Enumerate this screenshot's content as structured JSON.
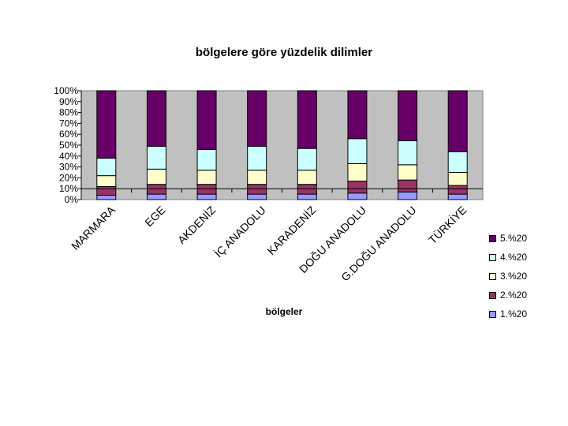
{
  "chart_data": {
    "type": "bar",
    "stacked": true,
    "normalized": true,
    "title": "bölgelere göre yüzdelik dilimler",
    "xlabel": "bölgeler",
    "ylabel": "",
    "ylim": [
      0,
      100
    ],
    "y_ticks": [
      "0%",
      "10%",
      "20%",
      "30%",
      "40%",
      "50%",
      "60%",
      "70%",
      "80%",
      "90%",
      "100%"
    ],
    "categories": [
      "MARMARA",
      "EGE",
      "AKDENİZ",
      "İÇ ANADOLU",
      "KARADENİZ",
      "DOĞU ANADOLU",
      "G.DOĞU ANADOLU",
      "TÜRKİYE"
    ],
    "series": [
      {
        "name": "1.%20",
        "color": "#9999ff",
        "values": [
          4,
          5,
          5,
          5,
          5,
          6,
          7,
          5
        ]
      },
      {
        "name": "2.%20",
        "color": "#993366",
        "values": [
          8,
          9,
          9,
          9,
          9,
          11,
          11,
          8
        ]
      },
      {
        "name": "3.%20",
        "color": "#ffffcc",
        "values": [
          10,
          14,
          13,
          13,
          13,
          16,
          14,
          12
        ]
      },
      {
        "name": "4.%20",
        "color": "#ccffff",
        "values": [
          16,
          21,
          19,
          22,
          20,
          23,
          22,
          19
        ]
      },
      {
        "name": "5.%20",
        "color": "#660066",
        "values": [
          62,
          51,
          54,
          51,
          53,
          44,
          46,
          56
        ]
      }
    ],
    "plot_background": "#c0c0c0",
    "grid": false,
    "legend_position": "right"
  }
}
